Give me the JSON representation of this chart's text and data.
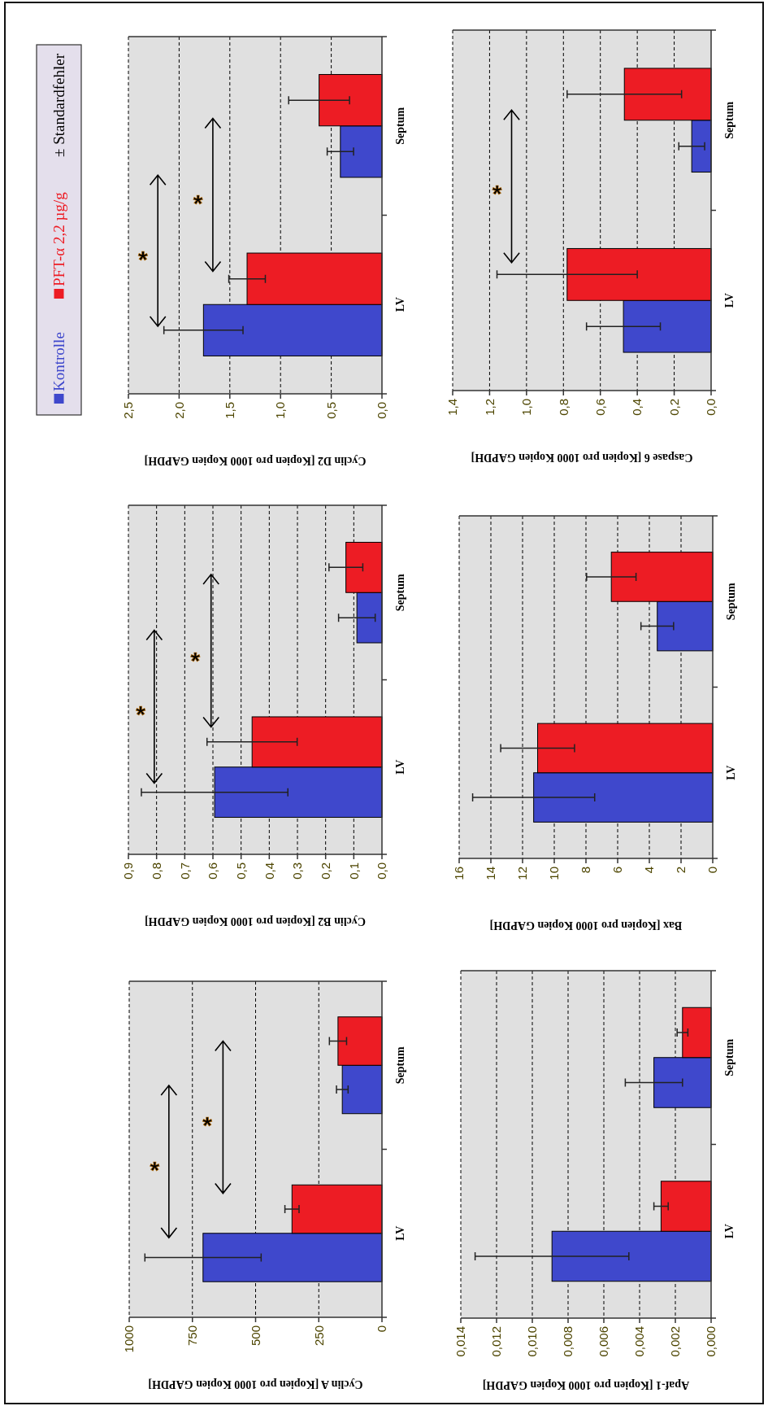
{
  "chart_data": [
    {
      "type": "bar",
      "orientation": "horizontal",
      "xlabel": "Cyclin D2 [Kopien pro 1000 Kopien GAPDH]",
      "categories": [
        "Septum",
        "LV"
      ],
      "series": [
        {
          "name": "Kontrolle",
          "color": "#3f48cc",
          "values": [
            0.41,
            1.76
          ],
          "errors": [
            0.13,
            0.39
          ]
        },
        {
          "name": "PFT-α 2,2 µg/g",
          "color": "#ed1c24",
          "values": [
            0.62,
            1.33
          ],
          "errors": [
            0.3,
            0.18
          ]
        }
      ],
      "xlim": [
        2.5,
        0
      ],
      "xticks": [
        {
          "value": 2.5,
          "label": "2,5"
        },
        {
          "value": 2,
          "label": "2,0"
        },
        {
          "value": 1.5,
          "label": "1,5"
        },
        {
          "value": 1,
          "label": "1,0"
        },
        {
          "value": 0.5,
          "label": "0,5"
        },
        {
          "value": 0,
          "label": "0,0"
        }
      ],
      "grid": "x",
      "legend": "left",
      "annotations": [
        "*",
        "*",
        "± Standardfehler"
      ]
    },
    {
      "type": "bar",
      "orientation": "horizontal",
      "xlabel": "Caspase 6 [Kopien pro 1000 Kopien GAPDH]",
      "categories": [
        "Septum",
        "LV"
      ],
      "series": [
        {
          "color": "#3f48cc",
          "values": [
            0.105,
            0.475
          ],
          "errors": [
            0.07,
            0.2
          ]
        },
        {
          "color": "#ed1c24",
          "values": [
            0.47,
            0.78
          ],
          "errors": [
            0.31,
            0.38
          ]
        }
      ],
      "xlim": [
        1.4,
        0
      ],
      "xticks": [
        {
          "value": 1.4,
          "label": "1,4"
        },
        {
          "value": 1.2,
          "label": "1,2"
        },
        {
          "value": 1,
          "label": "1,0"
        },
        {
          "value": 0.8,
          "label": "0,8"
        },
        {
          "value": 0.6,
          "label": "0,6"
        },
        {
          "value": 0.4,
          "label": "0,4"
        },
        {
          "value": 0.2,
          "label": "0,2"
        },
        {
          "value": 0,
          "label": "0,0"
        }
      ],
      "grid": "x",
      "annotations": [
        "*"
      ]
    },
    {
      "type": "bar",
      "orientation": "horizontal",
      "xlabel": "Cyclin B2 [Kopien pro 1000 Kopien GAPDH]",
      "categories": [
        "Septum",
        "LV"
      ],
      "series": [
        {
          "color": "#3f48cc",
          "values": [
            0.089,
            0.594
          ],
          "errors": [
            0.065,
            0.26
          ]
        },
        {
          "color": "#ed1c24",
          "values": [
            0.128,
            0.461
          ],
          "errors": [
            0.06,
            0.16
          ]
        }
      ],
      "xlim": [
        0.9,
        0
      ],
      "xticks": [
        {
          "value": 0.9,
          "label": "0,9"
        },
        {
          "value": 0.8,
          "label": "0,8"
        },
        {
          "value": 0.7,
          "label": "0,7"
        },
        {
          "value": 0.6,
          "label": "0,6"
        },
        {
          "value": 0.5,
          "label": "0,5"
        },
        {
          "value": 0.4,
          "label": "0,4"
        },
        {
          "value": 0.3,
          "label": "0,3"
        },
        {
          "value": 0.2,
          "label": "0,2"
        },
        {
          "value": 0.1,
          "label": "0,1"
        },
        {
          "value": 0,
          "label": "0,0"
        }
      ],
      "grid": "x",
      "annotations": [
        "*",
        "*"
      ]
    },
    {
      "type": "bar",
      "orientation": "horizontal",
      "xlabel": "Bax [Kopien pro 1000 Kopien GAPDH]",
      "categories": [
        "Septum",
        "LV"
      ],
      "series": [
        {
          "color": "#3f48cc",
          "values": [
            3.5,
            11.3
          ],
          "errors": [
            1.03,
            3.85
          ]
        },
        {
          "color": "#ed1c24",
          "values": [
            6.4,
            11.05
          ],
          "errors": [
            1.56,
            2.33
          ]
        }
      ],
      "xlim": [
        16,
        0
      ],
      "xticks": [
        16,
        14,
        12,
        10,
        8,
        6,
        4,
        2,
        0
      ],
      "grid": "x"
    },
    {
      "type": "bar",
      "orientation": "horizontal",
      "xlabel": "Cyclin A [Kopien pro 1000 Kopien GAPDH]",
      "categories": [
        "Septum",
        "LV"
      ],
      "series": [
        {
          "color": "#3f48cc",
          "values": [
            157,
            708
          ],
          "errors": [
            23,
            230
          ]
        },
        {
          "color": "#ed1c24",
          "values": [
            174,
            356
          ],
          "errors": [
            34,
            28
          ]
        }
      ],
      "xlim": [
        1000,
        0
      ],
      "xticks": [
        1000,
        750,
        500,
        250,
        0
      ],
      "grid": "x",
      "annotations": [
        "*",
        "*"
      ]
    },
    {
      "type": "bar",
      "orientation": "horizontal",
      "xlabel": "Apaf-1 [Kopien pro 1000 Kopien GAPDH]",
      "categories": [
        "Septum",
        "LV"
      ],
      "series": [
        {
          "color": "#3f48cc",
          "values": [
            0.0032,
            0.0089
          ],
          "errors": [
            0.0016,
            0.0043
          ]
        },
        {
          "color": "#ed1c24",
          "values": [
            0.0016,
            0.0028
          ],
          "errors": [
            0.0003,
            0.0004
          ]
        }
      ],
      "xlim": [
        0.014,
        0
      ],
      "xticks": [
        {
          "value": 0.014,
          "label": "0,014"
        },
        {
          "value": 0.012,
          "label": "0,012"
        },
        {
          "value": 0.01,
          "label": "0,010"
        },
        {
          "value": 0.008,
          "label": "0,008"
        },
        {
          "value": 0.006,
          "label": "0,006"
        },
        {
          "value": 0.004,
          "label": "0,004"
        },
        {
          "value": 0.002,
          "label": "0,002"
        },
        {
          "value": 0,
          "label": "0,000"
        }
      ],
      "grid": "x"
    }
  ]
}
